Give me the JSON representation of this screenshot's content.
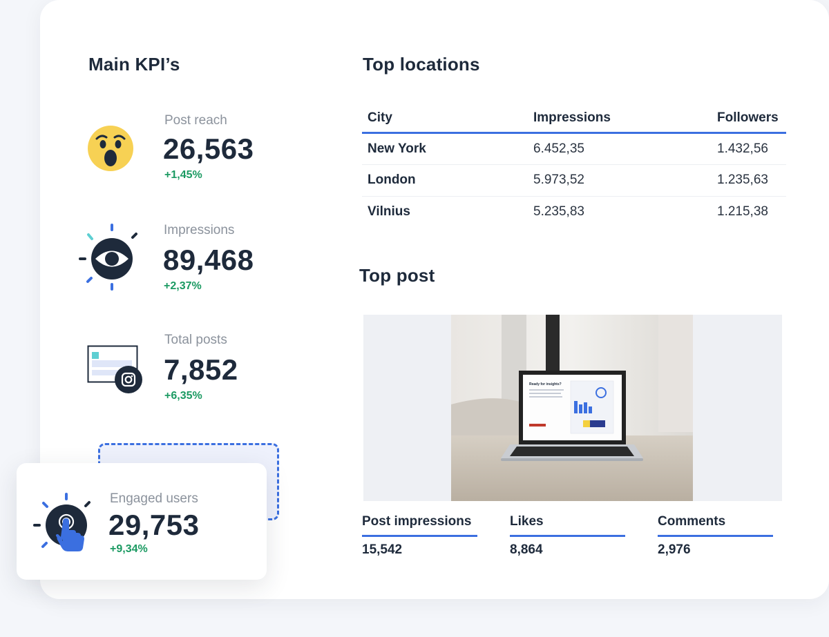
{
  "kpis": {
    "title": "Main KPI’s",
    "items": [
      {
        "label": "Post reach",
        "value": "26,563",
        "delta": "+1,45%",
        "icon": "surprised-face-icon"
      },
      {
        "label": "Impressions",
        "value": "89,468",
        "delta": "+2,37%",
        "icon": "eye-icon"
      },
      {
        "label": "Total posts",
        "value": "7,852",
        "delta": "+6,35%",
        "icon": "instagram-post-icon"
      }
    ],
    "highlight": {
      "label": "Engaged users",
      "value": "29,753",
      "delta": "+9,34%",
      "icon": "touch-hand-icon"
    }
  },
  "locations": {
    "title": "Top locations",
    "columns": [
      "City",
      "Impressions",
      "Followers"
    ],
    "rows": [
      [
        "New York",
        "6.452,35",
        "1.432,56"
      ],
      [
        "London",
        "5.973,52",
        "1.235,63"
      ],
      [
        "Vilnius",
        "5.235,83",
        "1.215,38"
      ]
    ]
  },
  "top_post": {
    "title": "Top post",
    "image_icon": "laptop-photo",
    "screen_heading": "Ready for insights?",
    "stats": [
      {
        "label": "Post impressions",
        "value": "15,542"
      },
      {
        "label": "Likes",
        "value": "8,864"
      },
      {
        "label": "Comments",
        "value": "2,976"
      }
    ]
  },
  "colors": {
    "accent": "#3b6fe0",
    "positive": "#1b9a62",
    "text": "#1e2a3b",
    "muted": "#8b929c",
    "emoji_yellow": "#f7d154"
  }
}
